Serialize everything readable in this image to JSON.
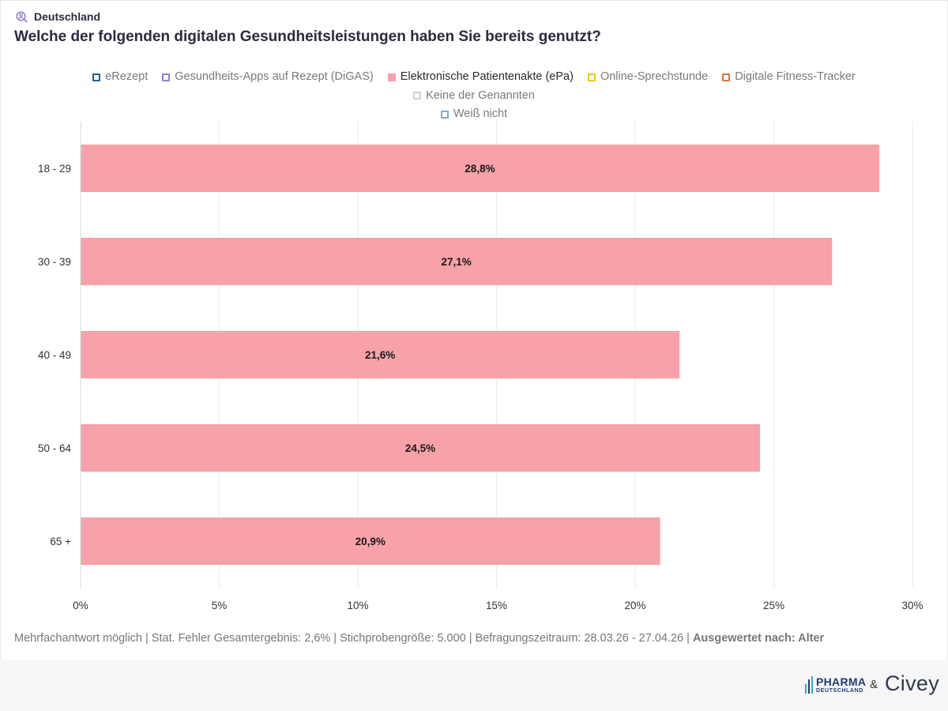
{
  "header": {
    "location": "Deutschland",
    "location_icon": "user-search-icon"
  },
  "question": "Welche der folgenden digitalen Gesundheitsleistungen haben Sie bereits genutzt?",
  "legend": [
    {
      "label": "eRezept",
      "color": "#1b5e9a",
      "active": false
    },
    {
      "label": "Gesundheits-Apps auf Rezept (DiGAS)",
      "color": "#8b82d6",
      "active": false
    },
    {
      "label": "Elektronische Patientenakte (ePa)",
      "color": "#f7a1a8",
      "active": true
    },
    {
      "label": "Online-Sprechstunde",
      "color": "#f2c418",
      "active": false
    },
    {
      "label": "Digitale Fitness-Tracker",
      "color": "#e2733b",
      "active": false
    },
    {
      "label": "Keine der Genannten",
      "color": "#cfcfcf",
      "active": false
    },
    {
      "label": "Weiß nicht",
      "color": "#8aaabf",
      "active": false
    }
  ],
  "chart_data": {
    "type": "bar",
    "orientation": "horizontal",
    "categories": [
      "18 - 29",
      "30 - 39",
      "40 - 49",
      "50 - 64",
      "65 +"
    ],
    "series": [
      {
        "name": "Elektronische Patientenakte (ePa)",
        "values": [
          28.8,
          27.1,
          21.6,
          24.5,
          20.9
        ],
        "color": "#f7a1a8"
      }
    ],
    "data_labels": [
      "28,8%",
      "27,1%",
      "21,6%",
      "24,5%",
      "20,9%"
    ],
    "xlim": [
      0,
      30
    ],
    "xticks": [
      "0%",
      "5%",
      "10%",
      "15%",
      "20%",
      "25%",
      "30%"
    ],
    "grid": true
  },
  "footer": {
    "note": "Mehrfachantwort möglich | Stat. Fehler Gesamtergebnis: 2,6% | Stichprobengröße: 5.000 | Befragungszeitraum: 28.03.26 - 27.04.26 | ",
    "evaluated_by": "Ausgewertet nach: Alter"
  },
  "branding": {
    "pharma_main": "PHARMA",
    "pharma_sub": "DEUTSCHLAND",
    "ampersand": "&",
    "civey": "Civey"
  }
}
